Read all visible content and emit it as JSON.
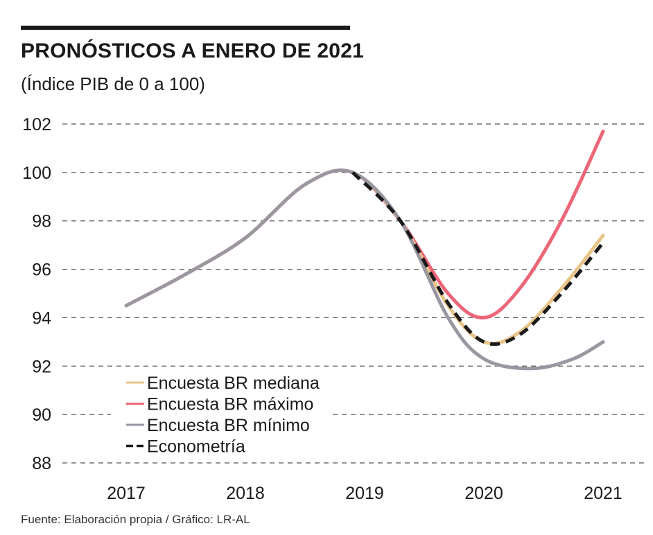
{
  "header": {
    "title": "PRONÓSTICOS A ENERO DE 2021",
    "subtitle": "(Índice PIB de 0 a 100)"
  },
  "footer": {
    "source": "Fuente: Elaboración propia / Gráfico: LR-AL"
  },
  "chart_data": {
    "type": "line",
    "title": "PRONÓSTICOS A ENERO DE 2021",
    "subtitle": "(Índice PIB de 0 a 100)",
    "xlabel": "",
    "ylabel": "",
    "xlim": [
      2017,
      2021
    ],
    "ylim": [
      88,
      102
    ],
    "x_ticks": [
      "2017",
      "2018",
      "2019",
      "2020",
      "2021"
    ],
    "y_ticks": [
      "102",
      "100",
      "98",
      "96",
      "94",
      "92",
      "90",
      "88"
    ],
    "grid": "horizontal dashed",
    "legend_position": "bottom-left",
    "series": [
      {
        "name": "Encuesta BR mediana",
        "color": "#e8c48a",
        "style": "solid",
        "points": [
          [
            2017,
            94.5
          ],
          [
            2017.5,
            95.8
          ],
          [
            2018,
            97.3
          ],
          [
            2018.5,
            99.5
          ],
          [
            2018.9,
            100
          ],
          [
            2019.3,
            98.0
          ],
          [
            2019.7,
            94.5
          ],
          [
            2020,
            93.0
          ],
          [
            2020.3,
            93.4
          ],
          [
            2020.65,
            95.2
          ],
          [
            2021,
            97.4
          ]
        ]
      },
      {
        "name": "Encuesta BR máximo",
        "color": "#ec6677",
        "style": "solid",
        "points": [
          [
            2017,
            94.5
          ],
          [
            2017.5,
            95.8
          ],
          [
            2018,
            97.3
          ],
          [
            2018.5,
            99.5
          ],
          [
            2018.9,
            100
          ],
          [
            2019.3,
            98.0
          ],
          [
            2019.7,
            95.0
          ],
          [
            2020,
            94.0
          ],
          [
            2020.3,
            95.2
          ],
          [
            2020.65,
            98.0
          ],
          [
            2021,
            101.7
          ]
        ]
      },
      {
        "name": "Encuesta BR mínimo",
        "color": "#9a97a1",
        "style": "solid",
        "points": [
          [
            2017,
            94.5
          ],
          [
            2017.5,
            95.8
          ],
          [
            2018,
            97.3
          ],
          [
            2018.5,
            99.5
          ],
          [
            2018.9,
            100
          ],
          [
            2019.3,
            98.0
          ],
          [
            2019.7,
            94.0
          ],
          [
            2020,
            92.3
          ],
          [
            2020.4,
            91.9
          ],
          [
            2020.75,
            92.3
          ],
          [
            2021,
            93.0
          ]
        ]
      },
      {
        "name": "Econometría",
        "color": "#1a1a1a",
        "style": "dashed",
        "points": [
          [
            2018.9,
            100
          ],
          [
            2019.3,
            98.0
          ],
          [
            2019.7,
            94.6
          ],
          [
            2020,
            93.0
          ],
          [
            2020.3,
            93.3
          ],
          [
            2020.65,
            95.0
          ],
          [
            2021,
            97.1
          ]
        ]
      }
    ]
  }
}
